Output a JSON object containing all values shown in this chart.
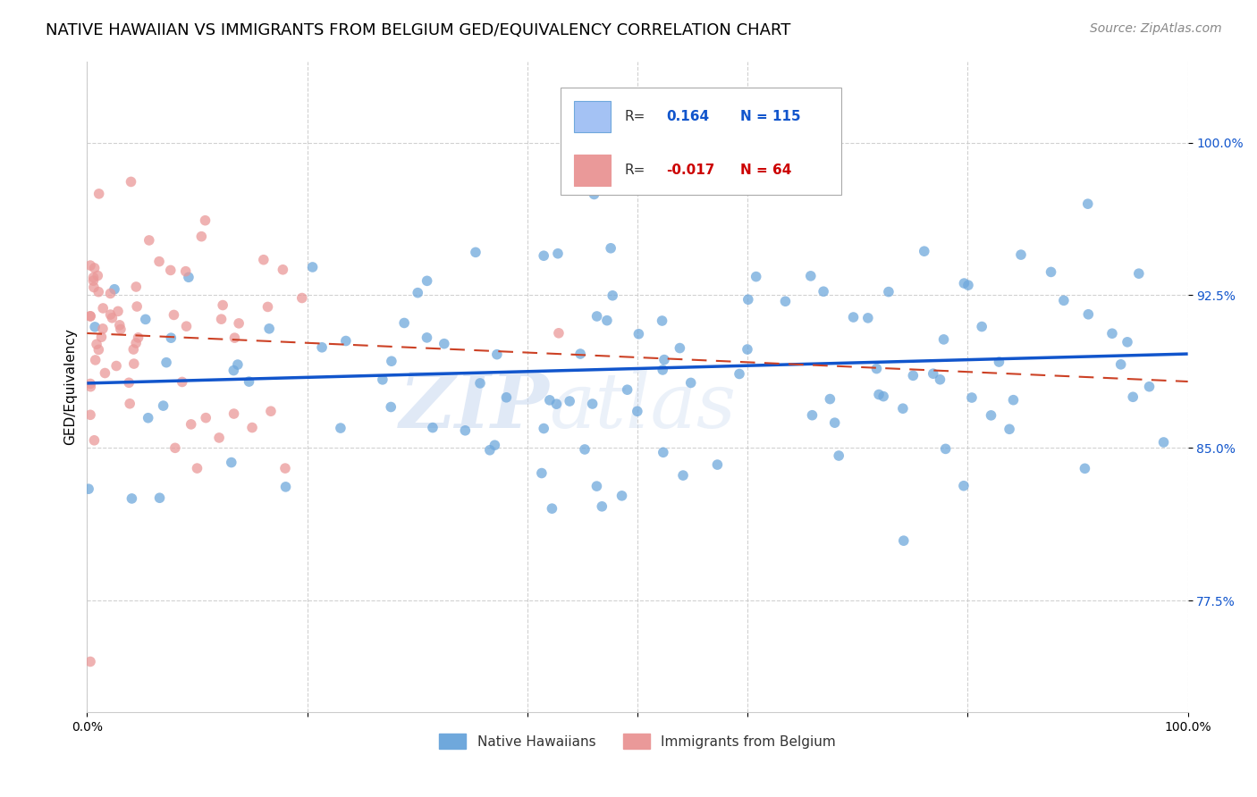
{
  "title": "NATIVE HAWAIIAN VS IMMIGRANTS FROM BELGIUM GED/EQUIVALENCY CORRELATION CHART",
  "source": "Source: ZipAtlas.com",
  "ylabel": "GED/Equivalency",
  "ytick_labels": [
    "77.5%",
    "85.0%",
    "92.5%",
    "100.0%"
  ],
  "ytick_values": [
    0.775,
    0.85,
    0.925,
    1.0
  ],
  "xlim": [
    0.0,
    1.0
  ],
  "ylim": [
    0.72,
    1.04
  ],
  "blue_R": "0.164",
  "blue_N": "115",
  "pink_R": "-0.017",
  "pink_N": "64",
  "blue_color": "#6fa8dc",
  "pink_color": "#ea9999",
  "blue_line_color": "#1155cc",
  "pink_line_color": "#cc4125",
  "legend_label_blue": "Native Hawaiians",
  "legend_label_pink": "Immigrants from Belgium",
  "watermark_zip": "ZIP",
  "watermark_atlas": "atlas",
  "title_fontsize": 13,
  "source_fontsize": 10,
  "axis_label_fontsize": 11,
  "tick_fontsize": 10,
  "legend_fontsize": 11
}
